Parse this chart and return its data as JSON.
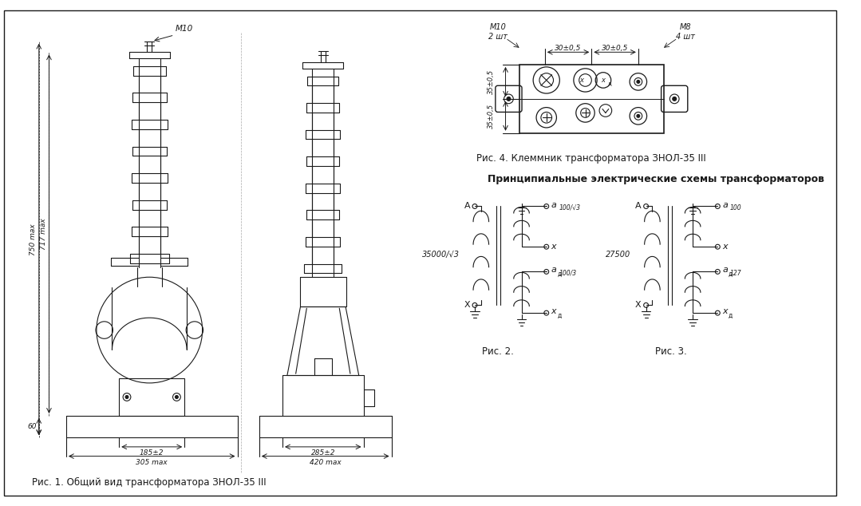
{
  "bg_color": "#ffffff",
  "line_color": "#1a1a1a",
  "fig_caption1": "Рис. 1. Общий вид трансформатора ЗНОЛ-35 III",
  "fig_caption4": "Рис. 4. Клеммник трансформатора ЗНОЛ-35 III",
  "fig_caption2": "Рис. 2.",
  "fig_caption3": "Рис. 3.",
  "schema_title": "Принципиальные электрические схемы трансформаторов",
  "label_m10": "М10",
  "label_m10_2sht": "М10\n2 шт",
  "label_m8_4sht": "М8\n4 шт",
  "label_30_05_1": "30±0,5",
  "label_30_05_2": "30±0,5",
  "label_35_05_1": "35±0,5",
  "label_35_05_2": "35±0,5",
  "label_750": "750 max",
  "label_717": "717 max",
  "label_60": "60",
  "label_185": "185±2",
  "label_305": "305 max",
  "label_285": "285±2",
  "label_420": "420 max",
  "label_35000": "35000/√3",
  "label_27500": "27500",
  "label_100sqrt3": "100/√3",
  "label_100_3": "100/3",
  "label_100": "100",
  "label_127": "127"
}
